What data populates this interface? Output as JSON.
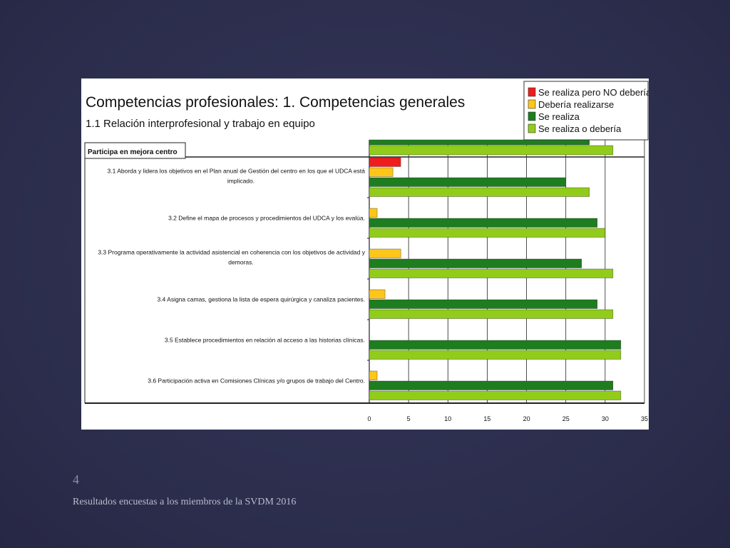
{
  "slide": {
    "number": "4",
    "footer": "Resultados encuestas a los miembros de la SVDM 2016"
  },
  "chart_data": {
    "type": "bar",
    "orientation": "horizontal",
    "title": "Competencias profesionales: 1. Competencias generales",
    "subtitle": "1.1  Relación interprofesional y trabajo en equipo",
    "section_label": "Participa en mejora centro",
    "xlim": [
      0,
      35
    ],
    "xticks": [
      0,
      5,
      10,
      15,
      20,
      25,
      30,
      35
    ],
    "grid": true,
    "legend_position": "top-right",
    "colors": {
      "Se realiza pero NO debería": "#ee1c1c",
      "Debería realizarse": "#ffc61a",
      "Se realiza": "#1e7d1e",
      "Se realiza o debería": "#92cc1a"
    },
    "series": [
      {
        "name": "Se realiza pero NO debería",
        "values": [
          4,
          0,
          0,
          0,
          0,
          0
        ]
      },
      {
        "name": "Debería realizarse",
        "values": [
          3,
          1,
          4,
          2,
          0,
          1
        ]
      },
      {
        "name": "Se realiza",
        "values": [
          25,
          29,
          27,
          29,
          32,
          31
        ]
      },
      {
        "name": "Se realiza o debería",
        "values": [
          28,
          30,
          31,
          31,
          32,
          32
        ]
      }
    ],
    "categories": [
      [
        "3.1 Aborda y lidera los objetivos en el Plan anual de Gestión del centro en los que el UDCA está",
        "implicado."
      ],
      [
        "3.2 Define el mapa de procesos y procedimientos del UDCA y los evalúa."
      ],
      [
        "3.3 Programa operativamente la actividad asistencial en coherencia con los objetivos de actividad y",
        "demoras."
      ],
      [
        "3.4 Asigna camas, gestiona la lista de espera quirúrgica y canaliza pacientes."
      ],
      [
        "3.5 Establece procedimientos en relación al acceso a las historias clínicas."
      ],
      [
        "3.6 Participación activa en Comisiones Clínicas y/o grupos de trabajo del Centro."
      ]
    ],
    "partial_top_bars": [
      {
        "series": "Se realiza",
        "value": 28
      },
      {
        "series": "Se realiza o debería",
        "value": 31
      }
    ]
  }
}
